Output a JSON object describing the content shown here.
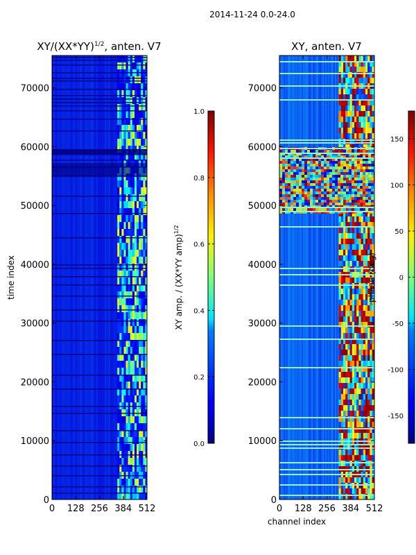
{
  "suptitle": "2014-11-24 0.0-24.0",
  "colors": {
    "colormap": "jet",
    "axis": "#000000",
    "band": "#9cf0c8"
  },
  "chart_data": [
    {
      "type": "heatmap",
      "title_main": "XY/(XX*YY)",
      "title_exp": "1/2",
      "title_tail": ", anten. V7",
      "xlabel": "",
      "ylabel": "time index",
      "xlim": [
        0,
        512
      ],
      "ylim": [
        0,
        75500
      ],
      "xticks": [
        0,
        128,
        256,
        384,
        512
      ],
      "yticks": [
        0,
        10000,
        20000,
        30000,
        40000,
        50000,
        60000,
        70000
      ],
      "colorbar": {
        "label_main": "XY amp. / (XX*YY amp)",
        "label_exp": "1/2",
        "range": [
          0.0,
          1.0
        ],
        "ticks": [
          "0.0",
          "0.2",
          "0.4",
          "0.6",
          "0.8",
          "1.0"
        ]
      }
    },
    {
      "type": "heatmap",
      "title": "XY, anten. V7",
      "xlabel": "channel index",
      "ylabel": "",
      "xlim": [
        0,
        512
      ],
      "ylim": [
        0,
        75500
      ],
      "xticks": [
        0,
        128,
        256,
        384,
        512
      ],
      "yticks": [
        0,
        10000,
        20000,
        30000,
        40000,
        50000,
        60000,
        70000
      ],
      "colorbar": {
        "label": "phase (deg)",
        "range": [
          -180,
          180
        ],
        "ticks": [
          "-150",
          "-100",
          "-50",
          "0",
          "50",
          "100",
          "150"
        ]
      }
    }
  ]
}
